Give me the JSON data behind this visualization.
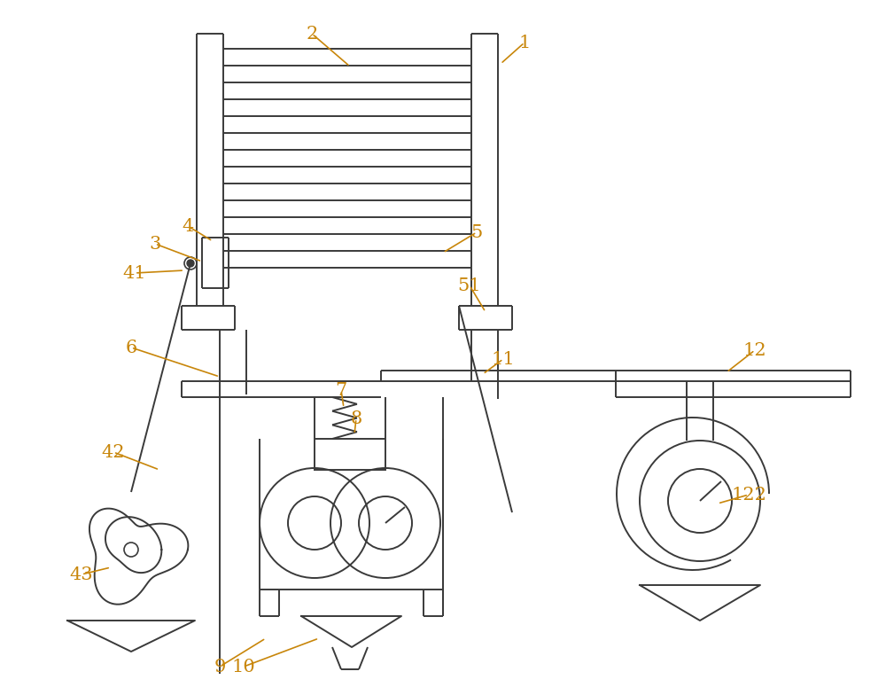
{
  "bg_color": "#ffffff",
  "line_color": "#3a3a3a",
  "label_color": "#c8860a",
  "fig_width": 10.0,
  "fig_height": 7.84,
  "dpi": 100
}
